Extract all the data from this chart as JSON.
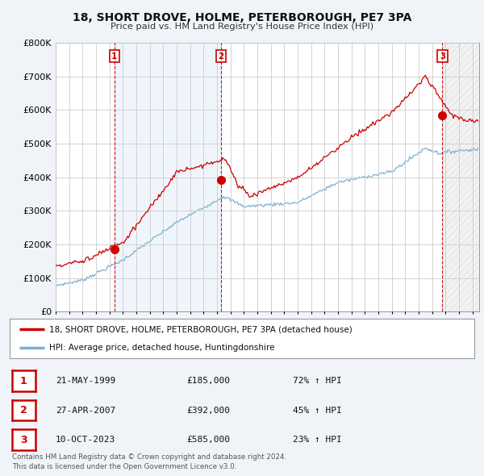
{
  "title": "18, SHORT DROVE, HOLME, PETERBOROUGH, PE7 3PA",
  "subtitle": "Price paid vs. HM Land Registry's House Price Index (HPI)",
  "ylim": [
    0,
    800000
  ],
  "yticks": [
    0,
    100000,
    200000,
    300000,
    400000,
    500000,
    600000,
    700000,
    800000
  ],
  "background_color": "#f0f4f8",
  "plot_background": "#ffffff",
  "grid_color": "#cccccc",
  "red_line_color": "#cc0000",
  "blue_line_color": "#7ab0d4",
  "shade_color": "#ddeeff",
  "sale_points": [
    {
      "date_num": 1999.37,
      "price": 185000,
      "label": "1"
    },
    {
      "date_num": 2007.3,
      "price": 392000,
      "label": "2"
    },
    {
      "date_num": 2023.77,
      "price": 585000,
      "label": "3"
    }
  ],
  "sale_labels_info": [
    {
      "label": "1",
      "date": "21-MAY-1999",
      "price": "£185,000",
      "hpi": "72% ↑ HPI"
    },
    {
      "label": "2",
      "date": "27-APR-2007",
      "price": "£392,000",
      "hpi": "45% ↑ HPI"
    },
    {
      "label": "3",
      "date": "10-OCT-2023",
      "price": "£585,000",
      "hpi": "23% ↑ HPI"
    }
  ],
  "vline_color": "#cc0000",
  "legend_label_red": "18, SHORT DROVE, HOLME, PETERBOROUGH, PE7 3PA (detached house)",
  "legend_label_blue": "HPI: Average price, detached house, Huntingdonshire",
  "footer": "Contains HM Land Registry data © Crown copyright and database right 2024.\nThis data is licensed under the Open Government Licence v3.0.",
  "xmin": 1995.0,
  "xmax": 2026.5
}
